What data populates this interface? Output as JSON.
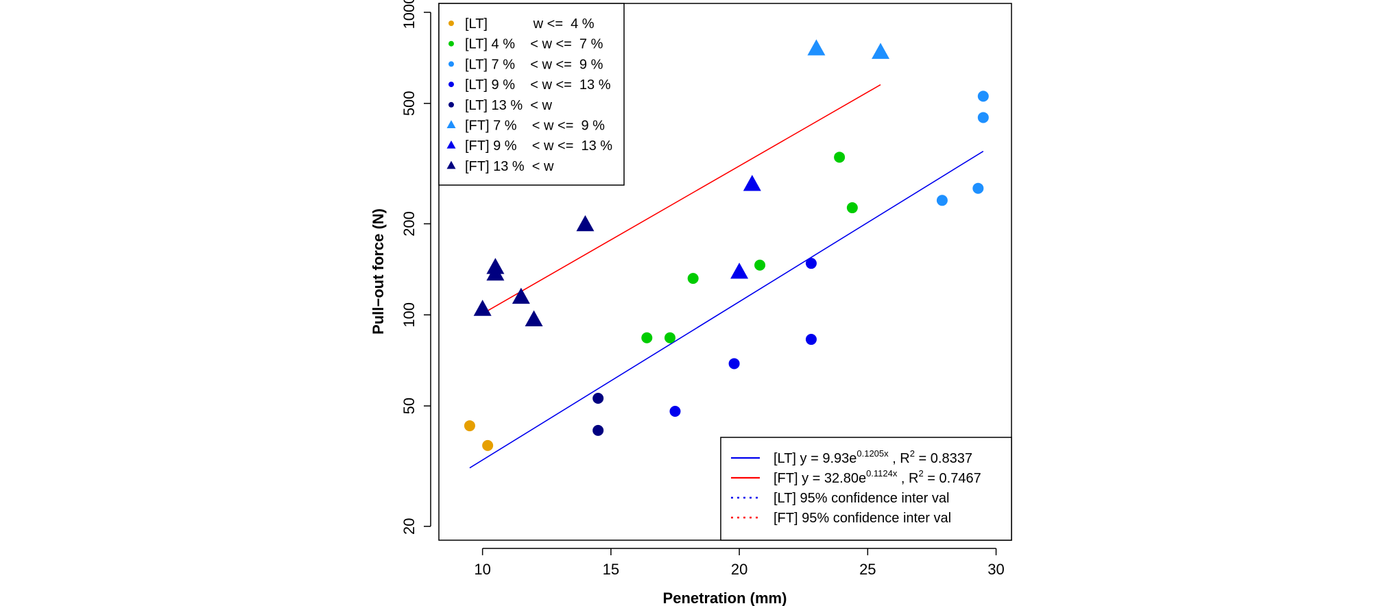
{
  "chart_data": {
    "type": "scatter",
    "xlabel": "Penetration (mm)",
    "ylabel": "Pull−out force (N)",
    "x_ticks": [
      10,
      15,
      20,
      25,
      30
    ],
    "y_ticks": [
      20,
      50,
      100,
      200,
      500,
      1000
    ],
    "x_tick_labels": [
      "10",
      "15",
      "20",
      "25",
      "30"
    ],
    "y_tick_labels": [
      "20",
      "50",
      "100",
      "200",
      "500",
      "1000"
    ],
    "xlim": [
      8.3,
      30.6
    ],
    "ylim": [
      18.0,
      1070
    ],
    "y_scale": "log",
    "grid": false,
    "series": [
      {
        "name": "[LT]            w <=  4 %",
        "marker": "circle",
        "color": "#E69F00",
        "points": [
          [
            9.5,
            43
          ],
          [
            10.2,
            37
          ]
        ]
      },
      {
        "name": "[LT] 4 %    < w <=  7 %",
        "marker": "circle",
        "color": "#00CC00",
        "points": [
          [
            16.4,
            84
          ],
          [
            17.3,
            84
          ],
          [
            18.2,
            132
          ],
          [
            20.8,
            146
          ],
          [
            23.9,
            332
          ],
          [
            24.4,
            226
          ]
        ]
      },
      {
        "name": "[LT] 7 %    < w <=  9 %",
        "marker": "circle",
        "color": "#1E90FF",
        "points": [
          [
            27.9,
            239
          ],
          [
            29.3,
            262
          ],
          [
            29.5,
            449
          ],
          [
            29.5,
            528
          ]
        ]
      },
      {
        "name": "[LT] 9 %    < w <=  13 %",
        "marker": "circle",
        "color": "#0000EE",
        "points": [
          [
            17.5,
            48
          ],
          [
            19.8,
            69
          ],
          [
            22.8,
            83
          ],
          [
            22.8,
            148
          ]
        ]
      },
      {
        "name": "[LT] 13 %  < w",
        "marker": "circle",
        "color": "#000080",
        "points": [
          [
            14.5,
            53
          ],
          [
            14.5,
            41.5
          ]
        ]
      },
      {
        "name": "[FT] 7 %    < w <=  9 %",
        "marker": "triangle",
        "color": "#1E90FF",
        "points": [
          [
            23.0,
            755
          ],
          [
            25.5,
            735
          ]
        ]
      },
      {
        "name": "[FT] 9 %    < w <=  13 %",
        "marker": "triangle",
        "color": "#0000EE",
        "points": [
          [
            20.0,
            138
          ],
          [
            20.5,
            269
          ]
        ]
      },
      {
        "name": "[FT] 13 %  < w",
        "marker": "triangle",
        "color": "#000080",
        "points": [
          [
            10.0,
            104
          ],
          [
            10.5,
            136
          ],
          [
            10.5,
            143
          ],
          [
            11.5,
            114
          ],
          [
            12.0,
            96
          ],
          [
            14.0,
            198
          ]
        ]
      }
    ],
    "fits": [
      {
        "name": "[LT] y = 9.93e",
        "exponent": "0.1205x",
        "r2": "0.8337",
        "color": "#0000EE",
        "a": 9.93,
        "b": 0.1205,
        "x_range": [
          9.5,
          29.5
        ]
      },
      {
        "name": "[FT] y = 32.80e",
        "exponent": "0.1124x",
        "r2": "0.7467",
        "color": "#FF0000",
        "a": 32.8,
        "b": 0.1124,
        "x_range": [
          10.0,
          25.5
        ]
      }
    ],
    "fit_legend": [
      {
        "label": "[LT] 95% confidence inter val",
        "color": "#0000EE",
        "style": "dotted"
      },
      {
        "label": "[FT] 95% confidence inter val",
        "color": "#FF0000",
        "style": "dotted"
      }
    ],
    "r2_prefix": ", R",
    "r2_sup": "2",
    "r2_eq": " = ",
    "legend_position": [
      "top-left",
      "bottom-right"
    ]
  }
}
